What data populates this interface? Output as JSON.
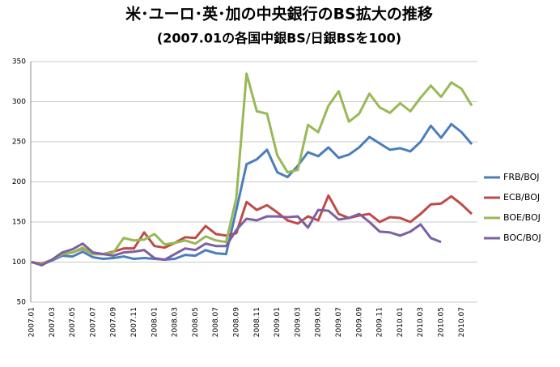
{
  "chart_data": {
    "type": "line",
    "title": "米･ユーロ･英･加の中央銀行のBS拡大の推移",
    "subtitle": "(2007.01の各国中銀BS/日銀BSを100)",
    "categories": [
      "2007.01",
      null,
      "2007.03",
      null,
      "2007.05",
      null,
      "2007.07",
      null,
      "2007.09",
      null,
      "2007.11",
      null,
      "2008.01",
      null,
      "2008.03",
      null,
      "2008.05",
      null,
      "2008.07",
      null,
      "2008.09",
      null,
      "2008.11",
      null,
      "2009.01",
      null,
      "2009.03",
      null,
      "2009.05",
      null,
      "2009.07",
      null,
      "2009.09",
      null,
      "2009.11",
      null,
      "2010.01",
      null,
      "2010.03",
      null,
      "2010.05",
      null,
      "2010.07",
      null
    ],
    "series": [
      {
        "name": "FRB/BOJ",
        "color": "#4a7ebb",
        "values": [
          100,
          97,
          102,
          108,
          107,
          113,
          106,
          104,
          105,
          107,
          104,
          105,
          104,
          103,
          104,
          109,
          108,
          115,
          111,
          110,
          165,
          222,
          228,
          240,
          212,
          206,
          220,
          237,
          232,
          243,
          230,
          234,
          243,
          256,
          248,
          240,
          242,
          238,
          250,
          270,
          255,
          272,
          262,
          247
        ]
      },
      {
        "name": "ECB/BOJ",
        "color": "#be4b48",
        "values": [
          100,
          98,
          103,
          110,
          112,
          117,
          110,
          110,
          113,
          117,
          117,
          137,
          120,
          118,
          124,
          131,
          130,
          145,
          135,
          133,
          136,
          175,
          165,
          171,
          162,
          152,
          148,
          157,
          152,
          183,
          160,
          155,
          158,
          160,
          150,
          156,
          155,
          150,
          160,
          172,
          173,
          182,
          172,
          160
        ]
      },
      {
        "name": "BOE/BOJ",
        "color": "#98b954",
        "values": [
          100,
          97,
          103,
          110,
          112,
          118,
          110,
          110,
          112,
          130,
          127,
          128,
          135,
          122,
          124,
          127,
          123,
          132,
          127,
          125,
          180,
          335,
          288,
          285,
          233,
          212,
          215,
          271,
          262,
          295,
          313,
          275,
          285,
          310,
          293,
          286,
          298,
          288,
          305,
          320,
          306,
          324,
          316,
          295
        ]
      },
      {
        "name": "BOC/BOJ",
        "color": "#7d60a0",
        "values": [
          100,
          96,
          103,
          112,
          116,
          123,
          112,
          110,
          108,
          112,
          113,
          115,
          105,
          103,
          110,
          117,
          115,
          123,
          120,
          120,
          140,
          154,
          152,
          157,
          157,
          156,
          157,
          143,
          165,
          164,
          153,
          155,
          160,
          150,
          138,
          137,
          133,
          138,
          147,
          130,
          125,
          null,
          null,
          null
        ]
      }
    ],
    "ylim": [
      50,
      350
    ],
    "yticks": [
      50,
      100,
      150,
      200,
      250,
      300,
      350
    ],
    "grid": true,
    "legend": "right"
  }
}
